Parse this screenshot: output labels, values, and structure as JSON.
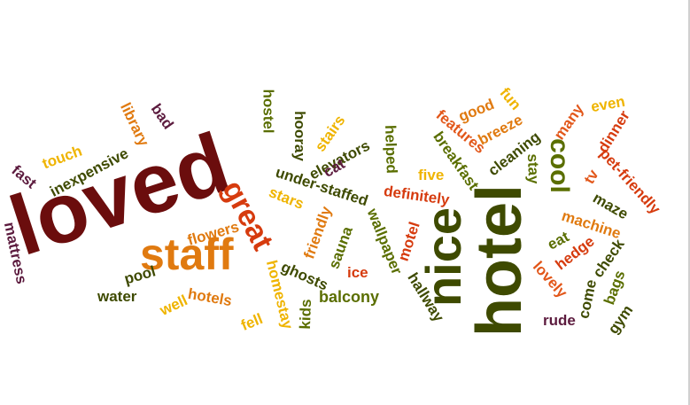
{
  "colors": {
    "maroon": "#6b0d0d",
    "dark_green": "#3e4a00",
    "olive": "#5a6e00",
    "orange": "#e07a10",
    "red": "#d63b0e",
    "gold": "#efb400",
    "plum": "#5c1b3e",
    "orange_red": "#e2571a"
  },
  "words": [
    "loved",
    "staff",
    "great",
    "nice",
    "hotel",
    "cool",
    "hostel",
    "hooray",
    "stairs",
    "elevators",
    "cat",
    "under-staffed",
    "stars",
    "flowers",
    "friendly",
    "sauna",
    "ghosts",
    "homestay",
    "fell",
    "kids",
    "balcony",
    "ice",
    "wallpaper",
    "motel",
    "hallway",
    "helped",
    "five",
    "definitely",
    "breakfast",
    "features",
    "good",
    "fun",
    "breeze",
    "cleaning",
    "many",
    "even",
    "stay",
    "dinner",
    "tv",
    "pet-friendly",
    "maze",
    "machine",
    "eat",
    "hedge",
    "check",
    "bags",
    "lovely",
    "come",
    "gym",
    "rude",
    "bad",
    "library",
    "touch",
    "inexpensive",
    "fast",
    "mattress",
    "pool",
    "water",
    "well",
    "hotels"
  ]
}
